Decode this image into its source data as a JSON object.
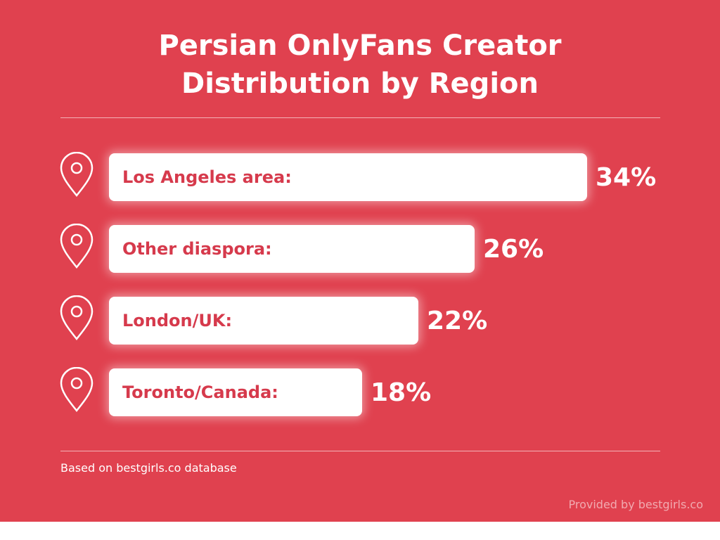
{
  "chart_data": {
    "type": "bar",
    "orientation": "horizontal",
    "title": "Persian OnlyFans Creator Distribution by Region",
    "title_lines": [
      "Persian OnlyFans Creator",
      "Distribution by Region"
    ],
    "categories": [
      "Los Angeles area:",
      "Other diaspora:",
      "London/UK:",
      "Toronto/Canada:"
    ],
    "values": [
      34,
      26,
      22,
      18
    ],
    "value_labels": [
      "34%",
      "26%",
      "22%",
      "18%"
    ],
    "unit": "%",
    "icon": "map-pin-icon",
    "grid": false,
    "legend": "none"
  },
  "footnote": "Based on bestgirls.co database",
  "credit": "Provided by bestgirls.co",
  "colors": {
    "background": "#e0414f",
    "bar": "#ffffff",
    "bar_label": "#d63a4c",
    "text": "#ffffff"
  }
}
